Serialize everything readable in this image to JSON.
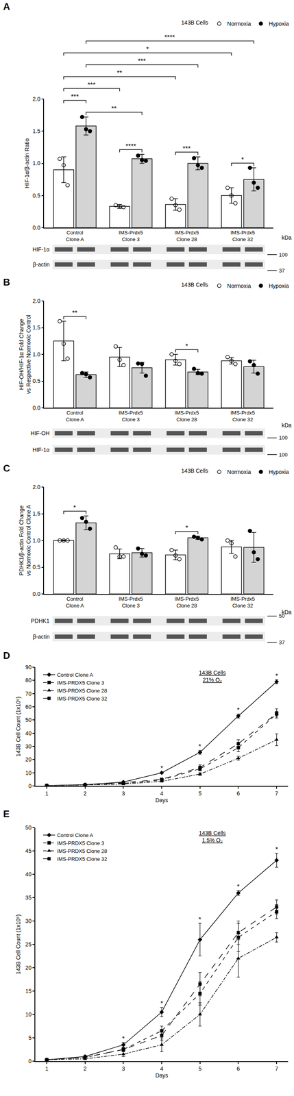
{
  "chart_data": [
    {
      "type": "bar",
      "panel": "A",
      "y_label": "HIF-1α/β-actin Ratio",
      "legend_title": "143B Cells",
      "legend": "top right",
      "categories": [
        "Control Clone A",
        "IMS-Prdx5 Clone 3",
        "IMS-Prdx5 Clone 28",
        "IMS-Prdx5 Clone 32"
      ],
      "ylim": [
        0,
        2
      ],
      "yticks": [
        {
          "value": 0,
          "label": "0.0"
        },
        0.5,
        {
          "value": 1,
          "label": "1.0"
        },
        1.5,
        {
          "value": 2,
          "label": "2.0"
        }
      ],
      "series": [
        {
          "name": "Normoxia",
          "color": "#ffffff",
          "marker": "circle-open",
          "values": [
            0.9,
            0.33,
            0.36,
            0.5
          ],
          "errors": [
            0.2,
            0.03,
            0.09,
            0.12
          ],
          "points": [
            [
              1.07,
              0.97,
              0.66
            ],
            [
              0.35,
              0.33,
              0.32
            ],
            [
              0.45,
              0.35,
              0.28
            ],
            [
              0.62,
              0.5,
              0.38
            ]
          ]
        },
        {
          "name": "Hypoxia",
          "color": "#d4d4d4",
          "marker": "circle",
          "values": [
            1.58,
            1.07,
            1.0,
            0.75
          ],
          "errors": [
            0.14,
            0.07,
            0.1,
            0.18
          ],
          "points": [
            [
              1.72,
              1.53,
              1.5
            ],
            [
              1.12,
              1.05,
              1.04
            ],
            [
              1.08,
              0.97,
              0.93
            ],
            [
              0.93,
              0.7,
              0.62
            ]
          ]
        }
      ],
      "comparisons": [
        {
          "from": [
            0,
            1
          ],
          "to": [
            3,
            1
          ],
          "label": "****"
        },
        {
          "from": [
            0,
            0
          ],
          "to": [
            3,
            0
          ],
          "label": "*"
        },
        {
          "from": [
            0,
            1
          ],
          "to": [
            2,
            1
          ],
          "label": "***"
        },
        {
          "from": [
            0,
            0
          ],
          "to": [
            2,
            0
          ],
          "label": "**"
        },
        {
          "from": [
            0,
            0
          ],
          "to": [
            1,
            0
          ],
          "label": "***"
        },
        {
          "from": [
            0,
            0
          ],
          "to": [
            0,
            1
          ],
          "label": "***"
        },
        {
          "from": [
            0,
            1
          ],
          "to": [
            1,
            1
          ],
          "label": "**"
        },
        {
          "from": [
            1,
            0
          ],
          "to": [
            1,
            1
          ],
          "label": "****"
        },
        {
          "from": [
            2,
            0
          ],
          "to": [
            2,
            1
          ],
          "label": "***"
        },
        {
          "from": [
            3,
            0
          ],
          "to": [
            3,
            1
          ],
          "label": "*"
        }
      ],
      "blot": {
        "unit": "kDa",
        "rows": [
          "HIF-1α",
          "β-actin"
        ],
        "markers": [
          100,
          37
        ]
      }
    },
    {
      "type": "bar",
      "panel": "B",
      "y_label": [
        "HIF-OH/HIF-1α Fold Change",
        "vs Respective Normoxic Control"
      ],
      "legend_title": "143B Cells",
      "legend": "top right",
      "categories": [
        "Control Clone A",
        "IMS-Prdx5 Clone 3",
        "IMS-Prdx5 Clone 28",
        "IMS-Prdx5 Clone 32"
      ],
      "ylim": [
        0,
        2
      ],
      "yticks": [
        {
          "value": 0,
          "label": "0.0"
        },
        0.5,
        {
          "value": 1,
          "label": "1.0"
        },
        1.5,
        {
          "value": 2,
          "label": "2.0"
        }
      ],
      "series": [
        {
          "name": "Normoxia",
          "color": "#ffffff",
          "marker": "circle-open",
          "values": [
            1.25,
            0.95,
            0.9,
            0.88
          ],
          "errors": [
            0.37,
            0.18,
            0.1,
            0.06
          ],
          "points": [
            [
              1.62,
              1.2,
              0.92
            ],
            [
              1.15,
              0.9,
              0.8
            ],
            [
              1.0,
              0.88,
              0.82
            ],
            [
              0.95,
              0.88,
              0.82
            ]
          ]
        },
        {
          "name": "Hypoxia",
          "color": "#d4d4d4",
          "marker": "circle",
          "values": [
            0.62,
            0.75,
            0.67,
            0.77
          ],
          "errors": [
            0.05,
            0.1,
            0.05,
            0.12
          ],
          "points": [
            [
              0.65,
              0.63,
              0.57
            ],
            [
              0.83,
              0.82,
              0.6
            ],
            [
              0.73,
              0.65,
              0.64
            ],
            [
              0.87,
              0.8,
              0.64
            ]
          ]
        }
      ],
      "comparisons": [
        {
          "from": [
            0,
            0
          ],
          "to": [
            0,
            1
          ],
          "label": "**"
        },
        {
          "from": [
            2,
            0
          ],
          "to": [
            2,
            1
          ],
          "label": "*"
        }
      ],
      "blot": {
        "unit": "kDa",
        "rows": [
          "HIF-OH",
          "HIF-1α"
        ],
        "markers": [
          100,
          100
        ]
      }
    },
    {
      "type": "bar",
      "panel": "C",
      "y_label": [
        "PDHK1/β-actin Fold Change",
        "vs Normoxic Control Clone A"
      ],
      "legend_title": "143B Cells",
      "legend": "top right",
      "categories": [
        "Control Clone A",
        "IMS-Prdx5 Clone 3",
        "IMS-Prdx5 Clone 28",
        "IMS-Prdx5 Clone 32"
      ],
      "ylim": [
        0,
        2
      ],
      "yticks": [
        {
          "value": 0,
          "label": "0.0"
        },
        0.5,
        {
          "value": 1,
          "label": "1.0"
        },
        1.5,
        {
          "value": 2,
          "label": "2.0"
        }
      ],
      "series": [
        {
          "name": "Normoxia",
          "color": "#ffffff",
          "marker": "circle-open",
          "values": [
            1.0,
            0.75,
            0.73,
            0.88
          ],
          "errors": [
            0.01,
            0.09,
            0.09,
            0.12
          ],
          "points": [
            [
              1.0,
              1.0,
              1.0
            ],
            [
              0.87,
              0.7,
              0.7
            ],
            [
              0.82,
              0.72,
              0.65
            ],
            [
              1.0,
              0.95,
              0.7
            ]
          ]
        },
        {
          "name": "Hypoxia",
          "color": "#d4d4d4",
          "marker": "circle",
          "values": [
            1.33,
            0.77,
            1.05,
            0.87
          ],
          "errors": [
            0.13,
            0.08,
            0.03,
            0.28
          ],
          "points": [
            [
              1.42,
              1.35,
              1.22
            ],
            [
              0.85,
              0.75,
              0.72
            ],
            [
              1.07,
              1.05,
              1.02
            ],
            [
              1.18,
              0.78,
              0.65
            ]
          ]
        }
      ],
      "comparisons": [
        {
          "from": [
            0,
            0
          ],
          "to": [
            0,
            1
          ],
          "label": "*"
        },
        {
          "from": [
            2,
            0
          ],
          "to": [
            2,
            1
          ],
          "label": "*"
        }
      ],
      "blot": {
        "unit": "kDa",
        "rows": [
          "PDHK1",
          "β-actin"
        ],
        "markers": [
          50,
          37
        ]
      }
    },
    {
      "type": "line",
      "panel": "D",
      "y_label": "143B Cell Count (1x10⁵)",
      "x_label": "Days",
      "annotations": [
        "143B Cells",
        "21% O₂"
      ],
      "legend": "top left",
      "x": [
        1,
        2,
        3,
        4,
        5,
        6,
        7
      ],
      "xlim": [
        0.7,
        7.3
      ],
      "xticks": [
        1,
        2,
        3,
        4,
        5,
        6,
        7
      ],
      "ylim": [
        0,
        90
      ],
      "yticks": [
        0,
        10,
        20,
        30,
        40,
        50,
        60,
        70,
        80,
        90
      ],
      "series": [
        {
          "name": "Control Clone A",
          "color": "#000000",
          "marker": "diamond",
          "line_style": "solid",
          "values": [
            0.3,
            1,
            3,
            10,
            25.5,
            53,
            79
          ],
          "errors": [
            0.05,
            0.1,
            0.3,
            0.5,
            1.5,
            1.5,
            1.5
          ]
        },
        {
          "name": "IMS-PRDX5 Clone 3",
          "color": "#000000",
          "marker": "square",
          "line_style": "dash",
          "values": [
            0.3,
            0.8,
            2,
            4.5,
            13,
            29,
            54.5
          ],
          "errors": [
            0.05,
            0.1,
            0.3,
            0.5,
            1.5,
            3,
            2
          ]
        },
        {
          "name": "IMS-PRDX5 Clone 28",
          "color": "#000000",
          "marker": "triangle-up",
          "line_style": "dashdot",
          "values": [
            0.3,
            0.7,
            1.5,
            3.5,
            9,
            21,
            35
          ],
          "errors": [
            0.05,
            0.1,
            0.3,
            0.5,
            1,
            1.5,
            4.5
          ]
        },
        {
          "name": "IMS-PRDX5 Clone 32",
          "color": "#000000",
          "marker": "x",
          "line_style": "longdash",
          "values": [
            0.3,
            0.8,
            2.5,
            5,
            14,
            32,
            55
          ],
          "errors": [
            0.05,
            0.1,
            0.3,
            0.8,
            2,
            3,
            3.5
          ]
        }
      ],
      "significance": {
        "x": [
          4,
          5,
          6,
          7
        ],
        "label": "*"
      }
    },
    {
      "type": "line",
      "panel": "E",
      "y_label": "143B Cell Count (1x10⁵)",
      "x_label": "Days",
      "annotations": [
        "143B Cells",
        "1.5% O₂"
      ],
      "legend": "top left",
      "x": [
        1,
        2,
        3,
        4,
        5,
        6,
        7
      ],
      "xlim": [
        0.7,
        7.3
      ],
      "xticks": [
        1,
        2,
        3,
        4,
        5,
        6,
        7
      ],
      "ylim": [
        0,
        50
      ],
      "yticks": [
        0,
        5,
        10,
        15,
        20,
        25,
        30,
        35,
        40,
        45,
        50
      ],
      "series": [
        {
          "name": "Control Clone A",
          "color": "#000000",
          "marker": "diamond",
          "line_style": "solid",
          "values": [
            0.3,
            1,
            3.5,
            10.5,
            26,
            36,
            43
          ],
          "errors": [
            0.05,
            0.2,
            0.5,
            1,
            3.5,
            0.5,
            1.5
          ]
        },
        {
          "name": "IMS-PRDX5 Clone 3",
          "color": "#000000",
          "marker": "square",
          "line_style": "dash",
          "values": [
            0.3,
            0.8,
            2.5,
            6.5,
            14.5,
            26.5,
            32
          ],
          "errors": [
            0.05,
            0.2,
            0.5,
            1,
            2.5,
            3,
            1.5
          ]
        },
        {
          "name": "IMS-PRDX5 Clone 28",
          "color": "#000000",
          "marker": "triangle-up",
          "line_style": "dashdot",
          "values": [
            0.3,
            0.5,
            1.5,
            3.5,
            10,
            22,
            26.5
          ],
          "errors": [
            0.05,
            0.2,
            0.5,
            1.5,
            2.5,
            4,
            1
          ]
        },
        {
          "name": "IMS-PRDX5 Clone 32",
          "color": "#000000",
          "marker": "x",
          "line_style": "longdash",
          "values": [
            0.3,
            0.8,
            2.5,
            5.5,
            16.5,
            27.5,
            33
          ],
          "errors": [
            0.05,
            0.2,
            0.5,
            1,
            2.5,
            2.5,
            1.5
          ]
        }
      ],
      "significance": {
        "x": [
          3,
          4,
          5,
          6,
          7
        ],
        "label": "*"
      }
    }
  ]
}
